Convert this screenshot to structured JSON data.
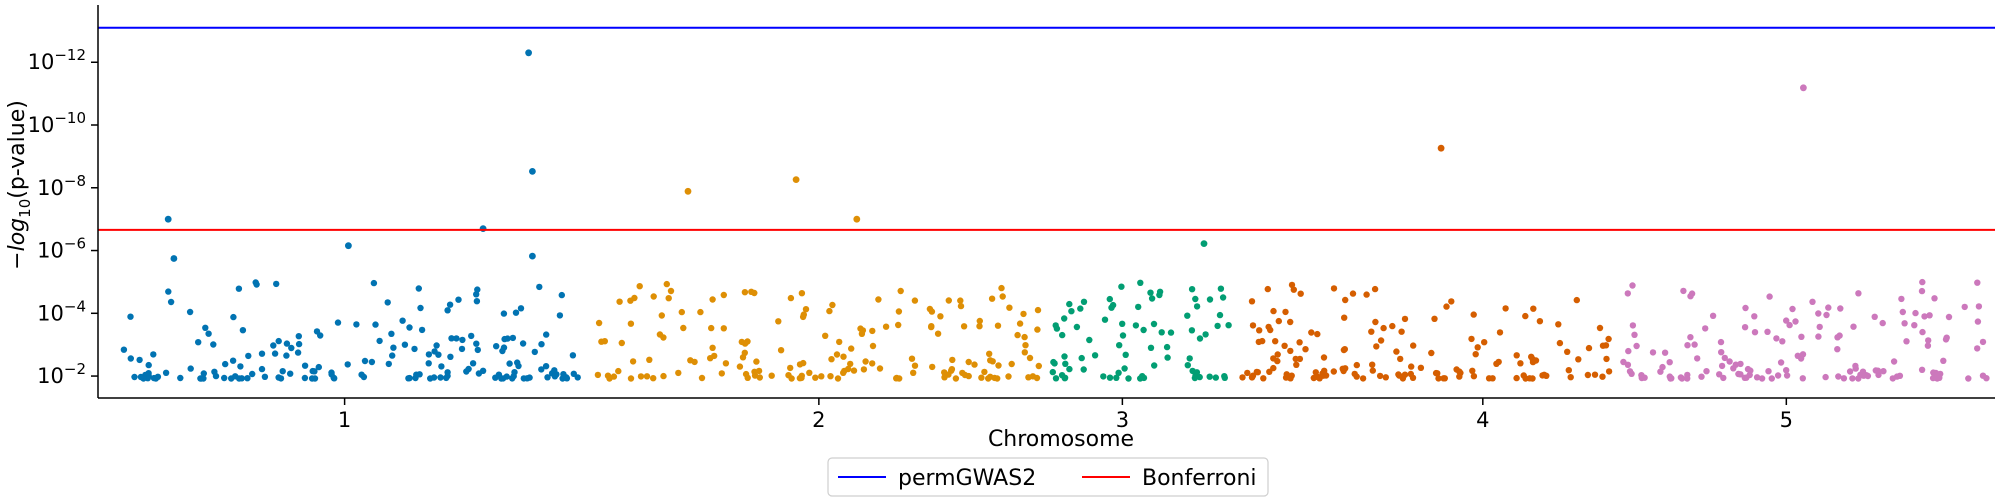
{
  "chart_data": {
    "type": "scatter",
    "title": "",
    "xlabel": "Chromosome",
    "ylabel_parts": [
      "−log",
      "10",
      "(p-value)"
    ],
    "y_scale": "log",
    "y_axis": "inverted",
    "ylim": [
      0.05,
      1.5e-14
    ],
    "y_ticks": [
      {
        "value": 1e-12,
        "exp": "−12"
      },
      {
        "value": 1e-10,
        "exp": "−10"
      },
      {
        "value": 1e-08,
        "exp": "−8"
      },
      {
        "value": 1e-06,
        "exp": "−6"
      },
      {
        "value": 0.0001,
        "exp": "−4"
      },
      {
        "value": 0.01,
        "exp": "−2"
      }
    ],
    "chromosomes": [
      {
        "label": "1",
        "color": "#0173b2",
        "xmin": 1,
        "xmax": 26
      },
      {
        "label": "2",
        "color": "#de8f05",
        "xmin": 26,
        "xmax": 50
      },
      {
        "label": "3",
        "color": "#029e73",
        "xmin": 50,
        "xmax": 60
      },
      {
        "label": "4",
        "color": "#d55e00",
        "xmin": 60,
        "xmax": 80
      },
      {
        "label": "5",
        "color": "#cc78bc",
        "xmin": 80,
        "xmax": 100
      }
    ],
    "x_ticks": [
      {
        "label": "1",
        "pos": 13
      },
      {
        "label": "2",
        "pos": 38
      },
      {
        "label": "3",
        "pos": 54
      },
      {
        "label": "4",
        "pos": 73
      },
      {
        "label": "5",
        "pos": 89
      }
    ],
    "thresholds": [
      {
        "name": "permGWAS2",
        "value": 8e-14,
        "color": "#0000ff"
      },
      {
        "name": "Bonferroni",
        "value": 2.2e-07,
        "color": "#ff0000"
      }
    ],
    "notable_points": [
      {
        "chr": "1",
        "x": 3.7,
        "p": 1e-07
      },
      {
        "chr": "1",
        "x": 4.0,
        "p": 1.8e-06
      },
      {
        "chr": "1",
        "x": 13.2,
        "p": 7e-07
      },
      {
        "chr": "1",
        "x": 20.3,
        "p": 2e-07
      },
      {
        "chr": "1",
        "x": 22.7,
        "p": 5e-13
      },
      {
        "chr": "1",
        "x": 22.9,
        "p": 3e-09
      },
      {
        "chr": "1",
        "x": 22.9,
        "p": 1.5e-06
      },
      {
        "chr": "2",
        "x": 31.1,
        "p": 1.3e-08
      },
      {
        "chr": "2",
        "x": 36.8,
        "p": 5.5e-09
      },
      {
        "chr": "2",
        "x": 40.0,
        "p": 1e-07
      },
      {
        "chr": "3",
        "x": 58.3,
        "p": 6e-07
      },
      {
        "chr": "4",
        "x": 70.8,
        "p": 5.5e-10
      },
      {
        "chr": "5",
        "x": 89.9,
        "p": 6.5e-12
      }
    ],
    "background_points_per_chromosome": [
      180,
      170,
      80,
      150,
      150
    ],
    "background_p_range": [
      1e-05,
      0.012
    ],
    "legend": {
      "position": "bottom-center",
      "entries": [
        "permGWAS2",
        "Bonferroni"
      ]
    }
  }
}
